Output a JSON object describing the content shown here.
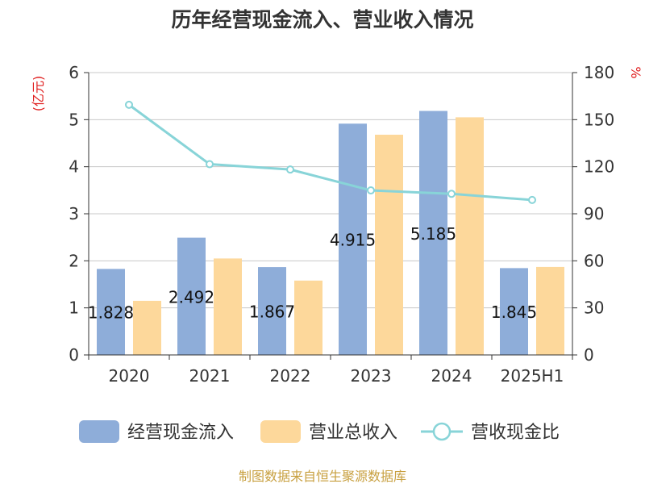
{
  "chart_data": {
    "type": "bar",
    "title": "历年经营现金流入、营业收入情况",
    "categories": [
      "2020",
      "2021",
      "2022",
      "2023",
      "2024",
      "2025H1"
    ],
    "series": [
      {
        "name": "经营现金流入",
        "type": "bar",
        "axis": "left",
        "color": "#8eadd9",
        "values": [
          1.828,
          2.492,
          1.867,
          4.915,
          5.185,
          1.845
        ],
        "data_labels": [
          "1.828",
          "2.492",
          "1.867",
          "4.915",
          "5.185",
          "1.845"
        ]
      },
      {
        "name": "营业总收入",
        "type": "bar",
        "axis": "left",
        "color": "#fdd89b",
        "values": [
          1.15,
          2.05,
          1.58,
          4.68,
          5.05,
          1.87
        ]
      },
      {
        "name": "营收现金比",
        "type": "line",
        "axis": "right",
        "color": "#88d4d8",
        "values": [
          159.5,
          121.6,
          118.2,
          104.9,
          102.7,
          98.8
        ]
      }
    ],
    "y_left": {
      "unit_label": "(亿元)",
      "min": 0,
      "max": 6,
      "ticks": [
        "0",
        "1",
        "2",
        "3",
        "4",
        "5",
        "6"
      ]
    },
    "y_right": {
      "unit_label": "%",
      "min": 0,
      "max": 180,
      "ticks": [
        "0",
        "30",
        "60",
        "90",
        "120",
        "150",
        "180"
      ]
    },
    "grid": true,
    "legend_position": "bottom"
  },
  "source_text": "制图数据来自恒生聚源数据库"
}
